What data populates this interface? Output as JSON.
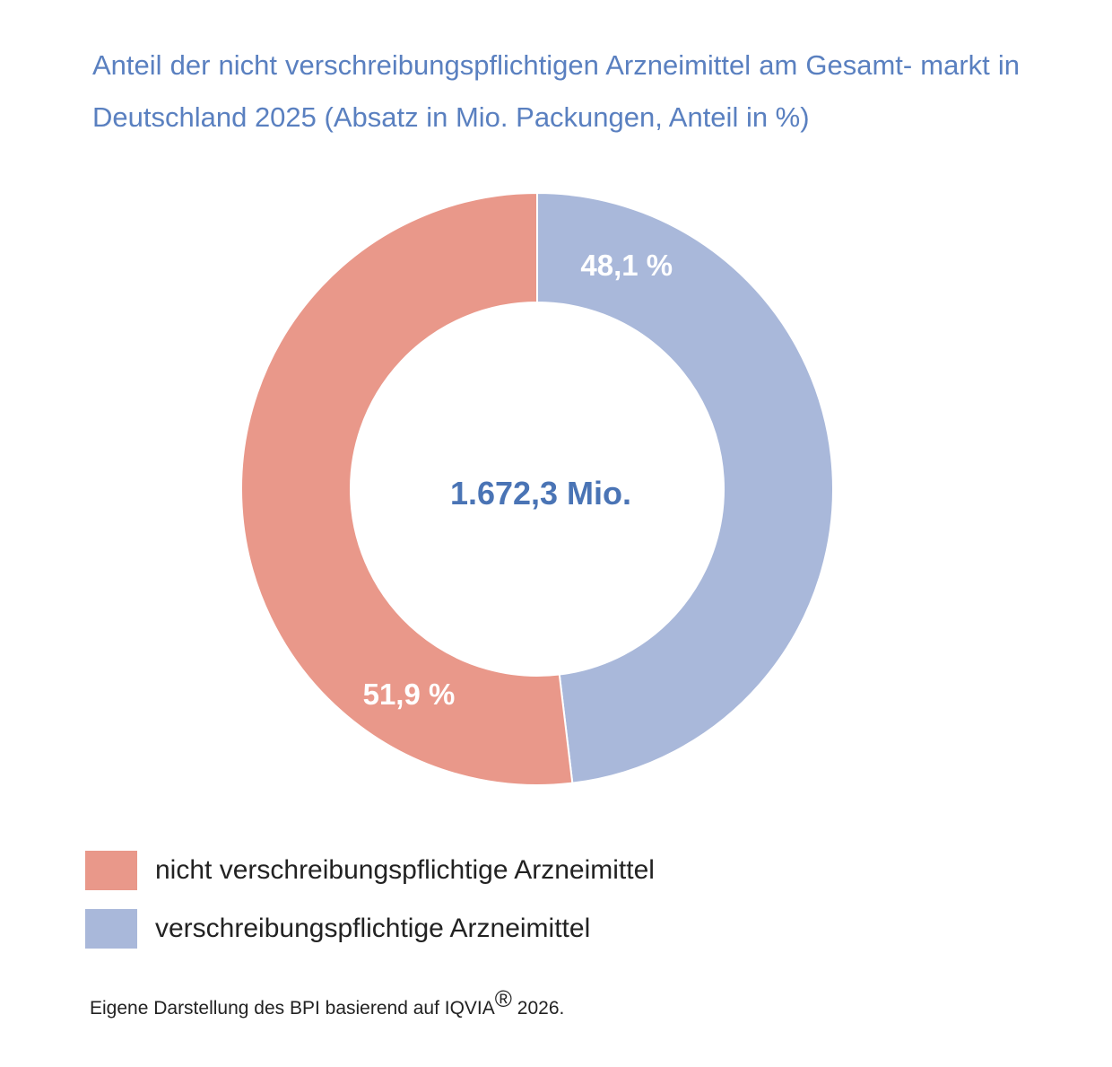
{
  "chart_data": {
    "type": "pie",
    "variant": "donut",
    "title": "Anteil der nicht verschreibungspflichtigen Arzneimittel am Gesamtmarkt in Deutschland 2025 (Absatz in Mio. Packungen, Anteil in %)",
    "title_lines": [
      "Anteil der nicht verschreibungspflichtigen Arzneimittel am Gesamt-",
      "markt in Deutschland 2025 (Absatz in Mio. Packungen, Anteil in %)"
    ],
    "center_label": "1.672,3 Mio.",
    "slices": [
      {
        "name": "verschreibungspflichtige Arzneimittel",
        "value": 48.1,
        "label": "48,1 %",
        "color": "#A9B8DA"
      },
      {
        "name": "nicht verschreibungspflichtige Arzneimittel",
        "value": 51.9,
        "label": "51,9 %",
        "color": "#E9988A"
      }
    ],
    "legend": [
      {
        "label": "nicht verschreibungspflichtige Arzneimittel",
        "color": "#E9988A"
      },
      {
        "label": "verschreibungspflichtige Arzneimittel",
        "color": "#A9B8DA"
      }
    ],
    "legend_position": "bottom-left"
  },
  "source": {
    "text": "Eigene Darstellung des BPI basierend auf IQVIA",
    "mark": "®",
    "year": " 2026."
  },
  "colors": {
    "title": "#5A80C0",
    "center": "#4A74B5"
  }
}
